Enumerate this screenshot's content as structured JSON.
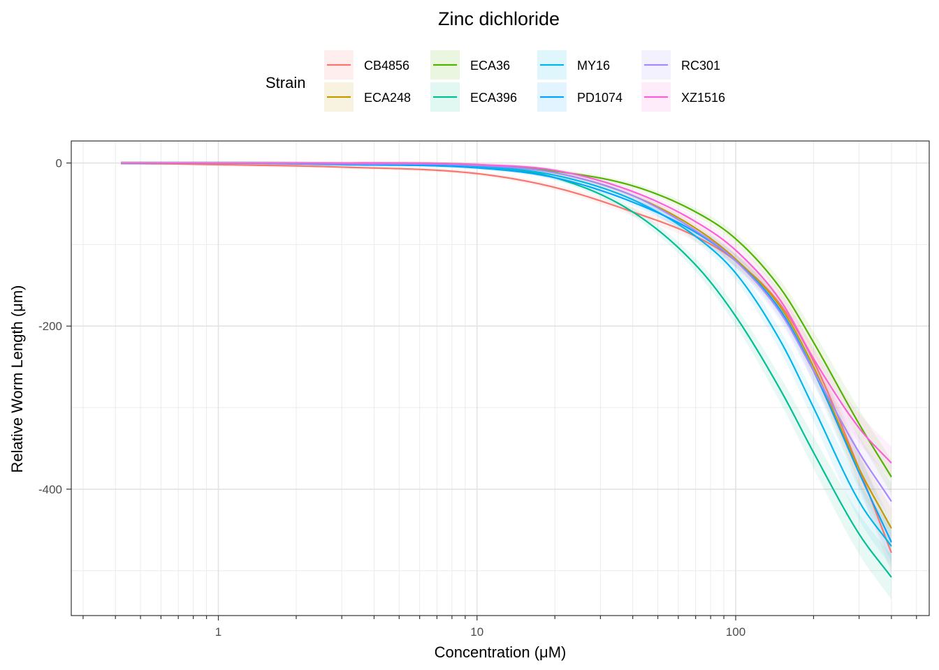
{
  "chart_data": {
    "type": "line",
    "title": "Zinc dichloride",
    "xlabel": "Concentration (μM)",
    "ylabel": "Relative Worm Length (μm)",
    "x_scale": "log10",
    "xlim": [
      0.27,
      560
    ],
    "ylim": [
      -555,
      27
    ],
    "x_ticks": [
      {
        "value": 1,
        "label": "1"
      },
      {
        "value": 10,
        "label": "10"
      },
      {
        "value": 100,
        "label": "100"
      }
    ],
    "y_ticks": [
      {
        "value": 0,
        "label": "0"
      },
      {
        "value": -200,
        "label": "-200"
      },
      {
        "value": -400,
        "label": "-400"
      }
    ],
    "y_minor_gridlines": [
      -100,
      -300,
      -500
    ],
    "legend": {
      "title": "Strain",
      "position": "top"
    },
    "confidence_bands": true,
    "x_range": [
      0.42,
      400
    ],
    "series": [
      {
        "name": "CB4856",
        "color": "#F8766D",
        "x": [
          0.42,
          1,
          3,
          10,
          20,
          40,
          70,
          100,
          150,
          200,
          300,
          400
        ],
        "y": [
          0,
          -2,
          -5,
          -13,
          -30,
          -60,
          -90,
          -120,
          -175,
          -243,
          -375,
          -478
        ]
      },
      {
        "name": "ECA248",
        "color": "#C49A00",
        "x": [
          0.42,
          1,
          3,
          10,
          20,
          40,
          70,
          100,
          150,
          200,
          300,
          400
        ],
        "y": [
          0,
          0,
          -1,
          -3,
          -12,
          -40,
          -80,
          -118,
          -178,
          -250,
          -375,
          -448
        ]
      },
      {
        "name": "ECA36",
        "color": "#53B400",
        "x": [
          0.42,
          1,
          3,
          10,
          20,
          40,
          70,
          100,
          150,
          200,
          300,
          400
        ],
        "y": [
          0,
          0,
          0,
          -2,
          -10,
          -28,
          -60,
          -93,
          -155,
          -220,
          -320,
          -385
        ]
      },
      {
        "name": "ECA396",
        "color": "#00C094",
        "x": [
          0.42,
          1,
          3,
          10,
          20,
          40,
          70,
          100,
          150,
          200,
          300,
          400
        ],
        "y": [
          0,
          0,
          -1,
          -4,
          -18,
          -60,
          -125,
          -188,
          -280,
          -355,
          -455,
          -508
        ]
      },
      {
        "name": "MY16",
        "color": "#00B6EB",
        "x": [
          0.42,
          1,
          3,
          10,
          20,
          40,
          70,
          100,
          150,
          200,
          300,
          400
        ],
        "y": [
          0,
          0,
          -1,
          -4,
          -15,
          -45,
          -90,
          -135,
          -220,
          -300,
          -415,
          -470
        ]
      },
      {
        "name": "PD1074",
        "color": "#06A4FF",
        "x": [
          0.42,
          1,
          3,
          10,
          20,
          40,
          70,
          100,
          150,
          200,
          300,
          400
        ],
        "y": [
          0,
          0,
          -2,
          -6,
          -18,
          -48,
          -85,
          -120,
          -182,
          -255,
          -380,
          -465
        ]
      },
      {
        "name": "RC301",
        "color": "#A58AFF",
        "x": [
          0.42,
          1,
          3,
          10,
          20,
          40,
          70,
          100,
          150,
          200,
          300,
          400
        ],
        "y": [
          0,
          0,
          -1,
          -3,
          -12,
          -40,
          -83,
          -120,
          -185,
          -255,
          -355,
          -415
        ]
      },
      {
        "name": "XZ1516",
        "color": "#FB61D7",
        "x": [
          0.42,
          1,
          3,
          10,
          20,
          40,
          70,
          100,
          150,
          200,
          300,
          400
        ],
        "y": [
          0,
          0,
          0,
          -2,
          -9,
          -35,
          -72,
          -107,
          -170,
          -240,
          -325,
          -368
        ]
      }
    ]
  }
}
